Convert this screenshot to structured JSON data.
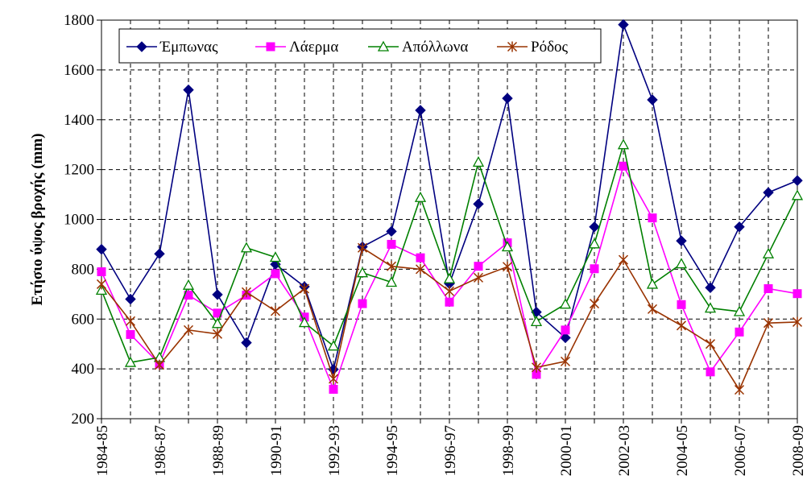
{
  "chart_data": {
    "type": "line",
    "ylabel": "Ετήσιο ύψος βροχής (mm)",
    "xlabel": "",
    "ylim": [
      200,
      1800
    ],
    "yticks": [
      200,
      400,
      600,
      800,
      1000,
      1200,
      1400,
      1600,
      1800
    ],
    "grid": true,
    "legend_position": "top",
    "x": [
      "1984-85",
      "1985-86",
      "1986-87",
      "1987-88",
      "1988-89",
      "1989-90",
      "1990-91",
      "1991-92",
      "1992-93",
      "1993-94",
      "1994-95",
      "1995-96",
      "1996-97",
      "1997-98",
      "1998-99",
      "1999-00",
      "2000-01",
      "2001-02",
      "2002-03",
      "2003-04",
      "2004-05",
      "2005-06",
      "2006-07",
      "2007-08",
      "2008-09"
    ],
    "x_tick_labels": [
      "1984-85",
      "",
      "1986-87",
      "",
      "1988-89",
      "",
      "1990-91",
      "",
      "1992-93",
      "",
      "1994-95",
      "",
      "1996-97",
      "",
      "1998-99",
      "",
      "2000-01",
      "",
      "2002-03",
      "",
      "2004-05",
      "",
      "2006-07",
      "",
      "2008-09"
    ],
    "series": [
      {
        "name": "Έμπωνας",
        "color": "#000080",
        "marker": "diamond",
        "values": [
          880,
          680,
          862,
          1520,
          698,
          505,
          820,
          730,
          398,
          890,
          952,
          1438,
          742,
          1062,
          1486,
          628,
          525,
          970,
          1782,
          1480,
          914,
          726,
          970,
          1108,
          1156
        ]
      },
      {
        "name": "Λάερμα",
        "color": "#ff00ff",
        "marker": "square",
        "values": [
          790,
          538,
          420,
          696,
          624,
          696,
          782,
          608,
          318,
          662,
          900,
          846,
          668,
          812,
          906,
          378,
          556,
          802,
          1214,
          1006,
          658,
          388,
          548,
          722,
          702
        ]
      },
      {
        "name": "Απόλλωνα",
        "color": "#008000",
        "marker": "triangle",
        "values": [
          716,
          426,
          446,
          736,
          582,
          886,
          848,
          586,
          492,
          786,
          748,
          1088,
          762,
          1230,
          890,
          590,
          660,
          902,
          1300,
          740,
          822,
          644,
          630,
          862,
          1096
        ]
      },
      {
        "name": "Ρόδος",
        "color": "#993300",
        "marker": "star",
        "values": [
          740,
          592,
          416,
          556,
          540,
          708,
          632,
          722,
          360,
          886,
          812,
          800,
          712,
          766,
          810,
          406,
          430,
          662,
          838,
          640,
          574,
          500,
          316,
          584,
          588
        ]
      }
    ]
  }
}
